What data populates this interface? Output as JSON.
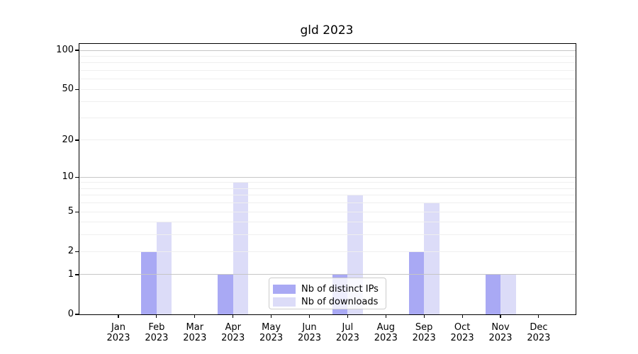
{
  "title": "gld 2023",
  "chart_data": {
    "type": "bar",
    "title": "gld 2023",
    "categories": [
      {
        "month": "Jan",
        "year": "2023"
      },
      {
        "month": "Feb",
        "year": "2023"
      },
      {
        "month": "Mar",
        "year": "2023"
      },
      {
        "month": "Apr",
        "year": "2023"
      },
      {
        "month": "May",
        "year": "2023"
      },
      {
        "month": "Jun",
        "year": "2023"
      },
      {
        "month": "Jul",
        "year": "2023"
      },
      {
        "month": "Aug",
        "year": "2023"
      },
      {
        "month": "Sep",
        "year": "2023"
      },
      {
        "month": "Oct",
        "year": "2023"
      },
      {
        "month": "Nov",
        "year": "2023"
      },
      {
        "month": "Dec",
        "year": "2023"
      }
    ],
    "series": [
      {
        "name": "Nb of distinct IPs",
        "color": "#a9a9f4",
        "values": [
          0,
          2,
          0,
          1,
          0,
          0,
          1,
          0,
          2,
          0,
          1,
          0
        ]
      },
      {
        "name": "Nb of downloads",
        "color": "#dcdcf8",
        "values": [
          0,
          4,
          0,
          9,
          0,
          0,
          7,
          0,
          6,
          0,
          1,
          0
        ]
      }
    ],
    "yscale": "log1p",
    "ylim": [
      0,
      112
    ],
    "yticks": [
      {
        "value": 0,
        "label": "0"
      },
      {
        "value": 1,
        "label": "1"
      },
      {
        "value": 2,
        "label": "2"
      },
      {
        "value": 5,
        "label": "5"
      },
      {
        "value": 10,
        "label": "10"
      },
      {
        "value": 20,
        "label": "20"
      },
      {
        "value": 50,
        "label": "50"
      },
      {
        "value": 100,
        "label": "100"
      }
    ],
    "grid_major": [
      1,
      10,
      100
    ],
    "grid_minor": [
      2,
      3,
      4,
      5,
      6,
      7,
      8,
      9,
      20,
      30,
      40,
      50,
      60,
      70,
      80,
      90
    ],
    "legend_position": "lower center"
  },
  "colors": {
    "grid_major": "#c6c6c6",
    "grid_minor": "#efefef",
    "axis": "#000000",
    "legend_border": "#cccccc"
  }
}
